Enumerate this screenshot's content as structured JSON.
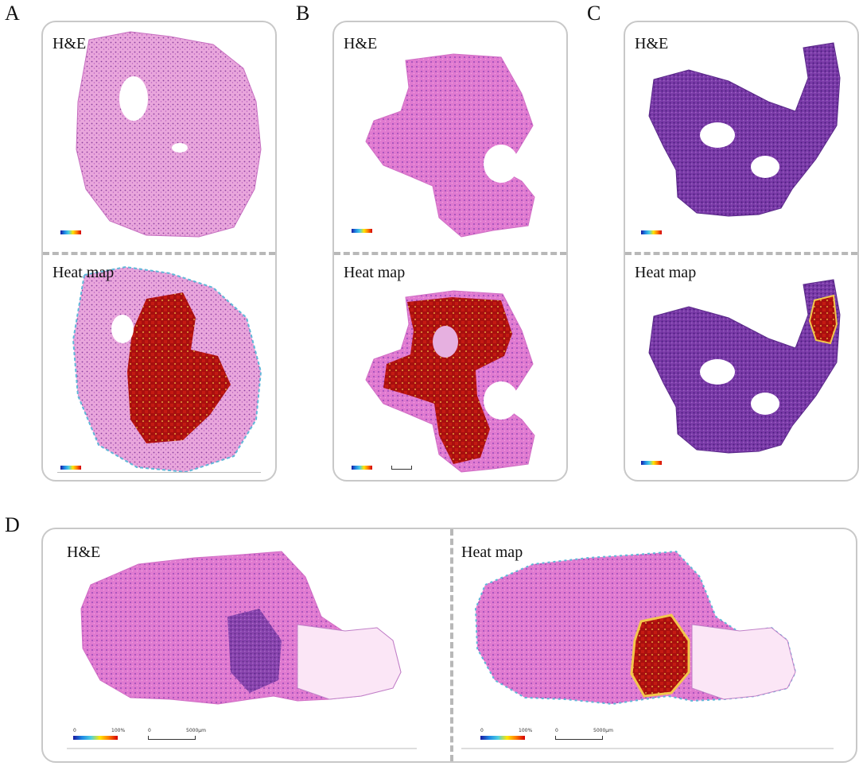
{
  "panels": {
    "a": {
      "letter": "A",
      "top_label": "H&E",
      "bottom_label": "Heat map"
    },
    "b": {
      "letter": "B",
      "top_label": "H&E",
      "bottom_label": "Heat map"
    },
    "c": {
      "letter": "C",
      "top_label": "H&E",
      "bottom_label": "Heat map"
    },
    "d": {
      "letter": "D",
      "left_label": "H&E",
      "right_label": "Heat map",
      "colorbar_min": "0",
      "colorbar_max": "100%",
      "scale_start": "0",
      "scale_value": "5000µm"
    }
  },
  "colors": {
    "he_pink": "#e78fcf",
    "he_purple": "#7a3aa8",
    "hot_red": "#b50e0e",
    "border": "#c8c8c8",
    "dash": "#b8b8b8"
  }
}
